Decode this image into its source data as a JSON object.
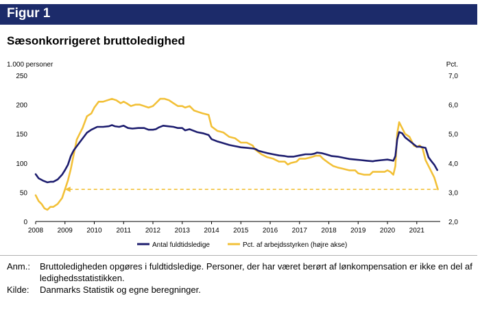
{
  "figure_label": "Figur 1",
  "title": "Sæsonkorrigeret bruttoledighed",
  "notes": {
    "anm_key": "Anm.:",
    "anm_text": "Bruttoledigheden opgøres i fuldtidsledige. Personer, der har været berørt af lønkompensation er ikke en del af ledighedsstatistikken.",
    "kilde_key": "Kilde:",
    "kilde_text": "Danmarks Statistik og egne beregninger."
  },
  "colors": {
    "banner": "#1c2b6a",
    "navy": "#1c1c6e",
    "gold": "#f2c037"
  },
  "chart_data": {
    "type": "line",
    "title": "Sæsonkorrigeret bruttoledighed",
    "left_axis_label": "1.000 personer",
    "right_axis_label": "Pct.",
    "x_range": [
      2008,
      2021.8
    ],
    "x_ticks": [
      "2008",
      "2009",
      "2010",
      "2011",
      "2012",
      "2013",
      "2014",
      "2015",
      "2016",
      "2017",
      "2018",
      "2019",
      "2020",
      "2021"
    ],
    "y_left": {
      "min": 0,
      "max": 250,
      "ticks": [
        "0",
        "50",
        "100",
        "150",
        "200",
        "250"
      ]
    },
    "y_right": {
      "min": 2.0,
      "max": 7.0,
      "ticks": [
        "2,0",
        "3,0",
        "4,0",
        "5,0",
        "6,0",
        "7,0"
      ]
    },
    "reference_line": {
      "y_right": 3.1,
      "x_start": 2009.0,
      "x_end": 2021.75,
      "style": "dashed-arrow"
    },
    "series": [
      {
        "name": "Antal fuldtidsledige",
        "axis": "left",
        "color": "#1c1c6e",
        "points": [
          [
            2008.0,
            81
          ],
          [
            2008.1,
            74
          ],
          [
            2008.25,
            70
          ],
          [
            2008.4,
            67
          ],
          [
            2008.5,
            68
          ],
          [
            2008.6,
            68
          ],
          [
            2008.75,
            72
          ],
          [
            2008.9,
            80
          ],
          [
            2009.0,
            88
          ],
          [
            2009.1,
            97
          ],
          [
            2009.2,
            112
          ],
          [
            2009.3,
            122
          ],
          [
            2009.45,
            132
          ],
          [
            2009.6,
            142
          ],
          [
            2009.75,
            152
          ],
          [
            2009.9,
            157
          ],
          [
            2010.1,
            162
          ],
          [
            2010.3,
            162
          ],
          [
            2010.5,
            163
          ],
          [
            2010.6,
            165
          ],
          [
            2010.7,
            163
          ],
          [
            2010.85,
            162
          ],
          [
            2011.0,
            164
          ],
          [
            2011.15,
            160
          ],
          [
            2011.3,
            159
          ],
          [
            2011.5,
            160
          ],
          [
            2011.7,
            160
          ],
          [
            2011.85,
            157
          ],
          [
            2012.0,
            157
          ],
          [
            2012.1,
            158
          ],
          [
            2012.2,
            161
          ],
          [
            2012.35,
            164
          ],
          [
            2012.5,
            163
          ],
          [
            2012.7,
            162
          ],
          [
            2012.85,
            160
          ],
          [
            2013.0,
            160
          ],
          [
            2013.1,
            156
          ],
          [
            2013.25,
            158
          ],
          [
            2013.35,
            156
          ],
          [
            2013.5,
            153
          ],
          [
            2013.7,
            151
          ],
          [
            2013.9,
            148
          ],
          [
            2014.0,
            141
          ],
          [
            2014.2,
            137
          ],
          [
            2014.4,
            134
          ],
          [
            2014.6,
            131
          ],
          [
            2014.8,
            129
          ],
          [
            2015.0,
            127
          ],
          [
            2015.2,
            126
          ],
          [
            2015.4,
            125
          ],
          [
            2015.5,
            124
          ],
          [
            2015.6,
            121
          ],
          [
            2015.75,
            119
          ],
          [
            2015.9,
            117
          ],
          [
            2016.1,
            115
          ],
          [
            2016.3,
            113
          ],
          [
            2016.5,
            112
          ],
          [
            2016.6,
            111
          ],
          [
            2016.8,
            111
          ],
          [
            2017.0,
            113
          ],
          [
            2017.2,
            115
          ],
          [
            2017.4,
            115
          ],
          [
            2017.5,
            116
          ],
          [
            2017.6,
            118
          ],
          [
            2017.75,
            117
          ],
          [
            2017.9,
            115
          ],
          [
            2018.1,
            112
          ],
          [
            2018.3,
            111
          ],
          [
            2018.5,
            109
          ],
          [
            2018.7,
            107
          ],
          [
            2018.9,
            106
          ],
          [
            2019.1,
            105
          ],
          [
            2019.3,
            104
          ],
          [
            2019.5,
            103
          ],
          [
            2019.6,
            104
          ],
          [
            2019.8,
            105
          ],
          [
            2020.0,
            106
          ],
          [
            2020.1,
            105
          ],
          [
            2020.2,
            104
          ],
          [
            2020.27,
            112
          ],
          [
            2020.33,
            140
          ],
          [
            2020.4,
            153
          ],
          [
            2020.5,
            151
          ],
          [
            2020.6,
            144
          ],
          [
            2020.75,
            138
          ],
          [
            2020.9,
            132
          ],
          [
            2021.0,
            128
          ],
          [
            2021.1,
            128
          ],
          [
            2021.2,
            127
          ],
          [
            2021.3,
            126
          ],
          [
            2021.4,
            110
          ],
          [
            2021.5,
            103
          ],
          [
            2021.6,
            97
          ],
          [
            2021.7,
            88
          ]
        ]
      },
      {
        "name": "Pct. af arbejdsstyrken (højre akse)",
        "axis": "right",
        "color": "#f2c037",
        "points": [
          [
            2008.0,
            2.9
          ],
          [
            2008.1,
            2.7
          ],
          [
            2008.2,
            2.6
          ],
          [
            2008.3,
            2.45
          ],
          [
            2008.4,
            2.4
          ],
          [
            2008.5,
            2.5
          ],
          [
            2008.6,
            2.5
          ],
          [
            2008.75,
            2.6
          ],
          [
            2008.9,
            2.8
          ],
          [
            2009.0,
            3.1
          ],
          [
            2009.1,
            3.4
          ],
          [
            2009.2,
            3.8
          ],
          [
            2009.3,
            4.3
          ],
          [
            2009.4,
            4.8
          ],
          [
            2009.5,
            5.0
          ],
          [
            2009.6,
            5.2
          ],
          [
            2009.75,
            5.6
          ],
          [
            2009.9,
            5.7
          ],
          [
            2010.0,
            5.9
          ],
          [
            2010.15,
            6.1
          ],
          [
            2010.3,
            6.1
          ],
          [
            2010.45,
            6.15
          ],
          [
            2010.6,
            6.2
          ],
          [
            2010.75,
            6.15
          ],
          [
            2010.9,
            6.05
          ],
          [
            2011.0,
            6.1
          ],
          [
            2011.1,
            6.05
          ],
          [
            2011.25,
            5.95
          ],
          [
            2011.4,
            6.0
          ],
          [
            2011.55,
            6.0
          ],
          [
            2011.7,
            5.95
          ],
          [
            2011.85,
            5.9
          ],
          [
            2012.0,
            5.95
          ],
          [
            2012.1,
            6.05
          ],
          [
            2012.25,
            6.2
          ],
          [
            2012.4,
            6.2
          ],
          [
            2012.55,
            6.15
          ],
          [
            2012.7,
            6.05
          ],
          [
            2012.85,
            5.95
          ],
          [
            2013.0,
            5.95
          ],
          [
            2013.1,
            5.9
          ],
          [
            2013.25,
            5.95
          ],
          [
            2013.4,
            5.8
          ],
          [
            2013.55,
            5.75
          ],
          [
            2013.7,
            5.7
          ],
          [
            2013.9,
            5.65
          ],
          [
            2014.0,
            5.25
          ],
          [
            2014.2,
            5.1
          ],
          [
            2014.4,
            5.05
          ],
          [
            2014.6,
            4.9
          ],
          [
            2014.8,
            4.85
          ],
          [
            2015.0,
            4.7
          ],
          [
            2015.2,
            4.7
          ],
          [
            2015.4,
            4.6
          ],
          [
            2015.5,
            4.45
          ],
          [
            2015.7,
            4.3
          ],
          [
            2015.9,
            4.2
          ],
          [
            2016.1,
            4.15
          ],
          [
            2016.3,
            4.05
          ],
          [
            2016.5,
            4.05
          ],
          [
            2016.6,
            3.95
          ],
          [
            2016.7,
            4.0
          ],
          [
            2016.9,
            4.05
          ],
          [
            2017.0,
            4.15
          ],
          [
            2017.2,
            4.15
          ],
          [
            2017.4,
            4.2
          ],
          [
            2017.55,
            4.25
          ],
          [
            2017.7,
            4.25
          ],
          [
            2017.8,
            4.15
          ],
          [
            2018.0,
            4.0
          ],
          [
            2018.15,
            3.9
          ],
          [
            2018.3,
            3.85
          ],
          [
            2018.5,
            3.8
          ],
          [
            2018.7,
            3.75
          ],
          [
            2018.9,
            3.75
          ],
          [
            2019.0,
            3.65
          ],
          [
            2019.2,
            3.6
          ],
          [
            2019.4,
            3.6
          ],
          [
            2019.5,
            3.7
          ],
          [
            2019.7,
            3.7
          ],
          [
            2019.9,
            3.7
          ],
          [
            2020.0,
            3.75
          ],
          [
            2020.1,
            3.7
          ],
          [
            2020.2,
            3.6
          ],
          [
            2020.27,
            3.9
          ],
          [
            2020.33,
            5.0
          ],
          [
            2020.4,
            5.4
          ],
          [
            2020.5,
            5.2
          ],
          [
            2020.6,
            5.0
          ],
          [
            2020.75,
            4.9
          ],
          [
            2020.9,
            4.6
          ],
          [
            2021.0,
            4.55
          ],
          [
            2021.1,
            4.6
          ],
          [
            2021.2,
            4.5
          ],
          [
            2021.3,
            4.1
          ],
          [
            2021.4,
            3.9
          ],
          [
            2021.5,
            3.7
          ],
          [
            2021.6,
            3.5
          ],
          [
            2021.72,
            3.1
          ]
        ]
      }
    ],
    "legend": {
      "placement": "bottom"
    }
  }
}
